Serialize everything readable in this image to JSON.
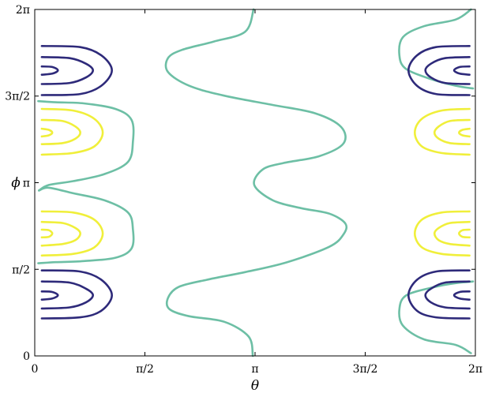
{
  "chart_data": {
    "type": "contour",
    "xlabel": "θ",
    "ylabel": "ϕ",
    "xlim": [
      0,
      6.283185
    ],
    "ylim": [
      0,
      6.283185
    ],
    "xticks": [
      {
        "value": 0,
        "label": "0"
      },
      {
        "value": 1.570796,
        "label": "π/2"
      },
      {
        "value": 3.141593,
        "label": "π"
      },
      {
        "value": 4.712389,
        "label": "3π/2"
      },
      {
        "value": 6.283185,
        "label": "2π"
      }
    ],
    "yticks": [
      {
        "value": 0,
        "label": "0"
      },
      {
        "value": 1.570796,
        "label": "π/2"
      },
      {
        "value": 3.141593,
        "label": "π"
      },
      {
        "value": 4.712389,
        "label": "3π/2"
      },
      {
        "value": 6.283185,
        "label": "2π"
      }
    ],
    "grid": false,
    "colors": {
      "level_dark": "#2e2a7a",
      "level_mid": "#6dbfa5",
      "level_bright": "#f0ef3a"
    },
    "contours": [
      {
        "level": "mid",
        "points": [
          [
            3.11,
            0
          ],
          [
            3.05,
            0.35
          ],
          [
            2.7,
            0.62
          ],
          [
            2.2,
            0.72
          ],
          [
            1.92,
            0.85
          ],
          [
            1.9,
            1.05
          ],
          [
            2.05,
            1.25
          ],
          [
            2.45,
            1.38
          ],
          [
            3.0,
            1.52
          ],
          [
            3.6,
            1.7
          ],
          [
            4.2,
            1.98
          ],
          [
            4.4,
            2.2
          ],
          [
            4.43,
            2.4
          ],
          [
            4.2,
            2.58
          ],
          [
            3.8,
            2.68
          ],
          [
            3.4,
            2.82
          ],
          [
            3.13,
            3.1
          ],
          [
            3.25,
            3.38
          ],
          [
            3.55,
            3.5
          ],
          [
            4.05,
            3.62
          ],
          [
            4.4,
            3.85
          ],
          [
            4.37,
            4.15
          ],
          [
            4.0,
            4.4
          ],
          [
            3.4,
            4.55
          ],
          [
            2.7,
            4.72
          ],
          [
            2.2,
            4.9
          ],
          [
            1.9,
            5.15
          ],
          [
            1.9,
            5.4
          ],
          [
            2.1,
            5.55
          ],
          [
            2.55,
            5.7
          ],
          [
            3.0,
            5.88
          ],
          [
            3.12,
            6.283
          ]
        ]
      },
      {
        "level": "mid",
        "points": [
          [
            0.06,
            3.0
          ],
          [
            0.2,
            3.1
          ],
          [
            0.55,
            3.17
          ],
          [
            1.0,
            3.3
          ],
          [
            1.33,
            3.52
          ],
          [
            1.4,
            3.88
          ],
          [
            1.38,
            4.28
          ],
          [
            1.15,
            4.48
          ],
          [
            0.7,
            4.58
          ],
          [
            0.3,
            4.6
          ],
          [
            0.05,
            4.62
          ]
        ]
      },
      {
        "level": "mid",
        "points": [
          [
            0.06,
            3.0
          ],
          [
            0.2,
            3.05
          ],
          [
            0.55,
            2.95
          ],
          [
            1.0,
            2.82
          ],
          [
            1.33,
            2.6
          ],
          [
            1.4,
            2.3
          ],
          [
            1.38,
            1.95
          ],
          [
            1.15,
            1.78
          ],
          [
            0.7,
            1.72
          ],
          [
            0.3,
            1.7
          ],
          [
            0.05,
            1.68
          ]
        ]
      },
      {
        "level": "mid",
        "points": [
          [
            6.22,
            6.283
          ],
          [
            6.0,
            6.1
          ],
          [
            5.55,
            5.98
          ],
          [
            5.25,
            5.78
          ],
          [
            5.2,
            5.45
          ],
          [
            5.3,
            5.2
          ],
          [
            5.7,
            5.0
          ],
          [
            6.0,
            4.9
          ],
          [
            6.25,
            4.85
          ]
        ]
      },
      {
        "level": "mid",
        "points": [
          [
            6.22,
            0.05
          ],
          [
            6.0,
            0.2
          ],
          [
            5.55,
            0.3
          ],
          [
            5.25,
            0.55
          ],
          [
            5.2,
            0.85
          ],
          [
            5.3,
            1.1
          ],
          [
            5.7,
            1.25
          ],
          [
            6.0,
            1.32
          ],
          [
            6.25,
            1.35
          ]
        ]
      },
      {
        "level": "dark",
        "points": [
          [
            0.1,
            5.62
          ],
          [
            0.65,
            5.6
          ],
          [
            0.95,
            5.45
          ],
          [
            1.1,
            5.18
          ],
          [
            0.95,
            4.9
          ],
          [
            0.65,
            4.75
          ],
          [
            0.1,
            4.73
          ]
        ]
      },
      {
        "level": "dark",
        "points": [
          [
            0.1,
            5.42
          ],
          [
            0.5,
            5.4
          ],
          [
            0.73,
            5.3
          ],
          [
            0.83,
            5.18
          ],
          [
            0.73,
            5.05
          ],
          [
            0.5,
            4.95
          ],
          [
            0.1,
            4.93
          ]
        ]
      },
      {
        "level": "dark",
        "points": [
          [
            0.1,
            5.25
          ],
          [
            0.25,
            5.24
          ],
          [
            0.33,
            5.18
          ],
          [
            0.25,
            5.12
          ],
          [
            0.1,
            5.1
          ]
        ]
      },
      {
        "level": "dark",
        "points": [
          [
            0.1,
            1.55
          ],
          [
            0.65,
            1.53
          ],
          [
            0.95,
            1.38
          ],
          [
            1.1,
            1.1
          ],
          [
            0.95,
            0.82
          ],
          [
            0.65,
            0.7
          ],
          [
            0.1,
            0.68
          ]
        ]
      },
      {
        "level": "dark",
        "points": [
          [
            0.1,
            1.35
          ],
          [
            0.5,
            1.33
          ],
          [
            0.73,
            1.22
          ],
          [
            0.83,
            1.1
          ],
          [
            0.73,
            0.97
          ],
          [
            0.5,
            0.88
          ],
          [
            0.1,
            0.86
          ]
        ]
      },
      {
        "level": "dark",
        "points": [
          [
            0.1,
            1.17
          ],
          [
            0.25,
            1.16
          ],
          [
            0.33,
            1.1
          ],
          [
            0.25,
            1.04
          ],
          [
            0.1,
            1.02
          ]
        ]
      },
      {
        "level": "dark",
        "points": [
          [
            6.2,
            5.62
          ],
          [
            5.72,
            5.6
          ],
          [
            5.45,
            5.45
          ],
          [
            5.33,
            5.18
          ],
          [
            5.45,
            4.9
          ],
          [
            5.72,
            4.75
          ],
          [
            6.2,
            4.73
          ]
        ]
      },
      {
        "level": "dark",
        "points": [
          [
            6.2,
            5.42
          ],
          [
            5.85,
            5.4
          ],
          [
            5.65,
            5.3
          ],
          [
            5.57,
            5.18
          ],
          [
            5.65,
            5.05
          ],
          [
            5.85,
            4.95
          ],
          [
            6.2,
            4.93
          ]
        ]
      },
      {
        "level": "dark",
        "points": [
          [
            6.2,
            5.25
          ],
          [
            6.06,
            5.24
          ],
          [
            5.98,
            5.18
          ],
          [
            6.06,
            5.12
          ],
          [
            6.2,
            5.1
          ]
        ]
      },
      {
        "level": "dark",
        "points": [
          [
            6.2,
            1.55
          ],
          [
            5.72,
            1.53
          ],
          [
            5.45,
            1.38
          ],
          [
            5.33,
            1.1
          ],
          [
            5.45,
            0.82
          ],
          [
            5.72,
            0.7
          ],
          [
            6.2,
            0.68
          ]
        ]
      },
      {
        "level": "dark",
        "points": [
          [
            6.2,
            1.35
          ],
          [
            5.85,
            1.33
          ],
          [
            5.65,
            1.22
          ],
          [
            5.57,
            1.1
          ],
          [
            5.65,
            0.97
          ],
          [
            5.85,
            0.88
          ],
          [
            6.2,
            0.86
          ]
        ]
      },
      {
        "level": "dark",
        "points": [
          [
            6.2,
            1.17
          ],
          [
            6.06,
            1.16
          ],
          [
            5.98,
            1.1
          ],
          [
            6.06,
            1.04
          ],
          [
            6.2,
            1.02
          ]
        ]
      },
      {
        "level": "bright",
        "points": [
          [
            0.1,
            4.48
          ],
          [
            0.55,
            4.45
          ],
          [
            0.85,
            4.3
          ],
          [
            0.97,
            4.05
          ],
          [
            0.85,
            3.8
          ],
          [
            0.55,
            3.68
          ],
          [
            0.1,
            3.65
          ]
        ]
      },
      {
        "level": "bright",
        "points": [
          [
            0.1,
            4.28
          ],
          [
            0.4,
            4.26
          ],
          [
            0.58,
            4.16
          ],
          [
            0.65,
            4.05
          ],
          [
            0.58,
            3.94
          ],
          [
            0.4,
            3.86
          ],
          [
            0.1,
            3.84
          ]
        ]
      },
      {
        "level": "bright",
        "points": [
          [
            0.1,
            4.12
          ],
          [
            0.2,
            4.1
          ],
          [
            0.25,
            4.05
          ],
          [
            0.2,
            4.0
          ],
          [
            0.1,
            3.98
          ]
        ]
      },
      {
        "level": "bright",
        "points": [
          [
            0.1,
            2.62
          ],
          [
            0.55,
            2.6
          ],
          [
            0.85,
            2.47
          ],
          [
            0.97,
            2.22
          ],
          [
            0.85,
            1.97
          ],
          [
            0.55,
            1.85
          ],
          [
            0.1,
            1.82
          ]
        ]
      },
      {
        "level": "bright",
        "points": [
          [
            0.1,
            2.43
          ],
          [
            0.4,
            2.41
          ],
          [
            0.58,
            2.32
          ],
          [
            0.65,
            2.22
          ],
          [
            0.58,
            2.1
          ],
          [
            0.4,
            2.03
          ],
          [
            0.1,
            2.0
          ]
        ]
      },
      {
        "level": "bright",
        "points": [
          [
            0.1,
            2.29
          ],
          [
            0.2,
            2.28
          ],
          [
            0.25,
            2.22
          ],
          [
            0.2,
            2.16
          ],
          [
            0.1,
            2.15
          ]
        ]
      },
      {
        "level": "bright",
        "points": [
          [
            6.2,
            4.48
          ],
          [
            5.8,
            4.45
          ],
          [
            5.52,
            4.3
          ],
          [
            5.42,
            4.05
          ],
          [
            5.52,
            3.8
          ],
          [
            5.8,
            3.68
          ],
          [
            6.2,
            3.65
          ]
        ]
      },
      {
        "level": "bright",
        "points": [
          [
            6.2,
            4.28
          ],
          [
            5.92,
            4.26
          ],
          [
            5.76,
            4.16
          ],
          [
            5.7,
            4.05
          ],
          [
            5.76,
            3.94
          ],
          [
            5.92,
            3.86
          ],
          [
            6.2,
            3.84
          ]
        ]
      },
      {
        "level": "bright",
        "points": [
          [
            6.2,
            4.12
          ],
          [
            6.1,
            4.1
          ],
          [
            6.05,
            4.05
          ],
          [
            6.1,
            4.0
          ],
          [
            6.2,
            3.98
          ]
        ]
      },
      {
        "level": "bright",
        "points": [
          [
            6.2,
            2.62
          ],
          [
            5.8,
            2.6
          ],
          [
            5.52,
            2.47
          ],
          [
            5.42,
            2.22
          ],
          [
            5.52,
            1.97
          ],
          [
            5.8,
            1.85
          ],
          [
            6.2,
            1.82
          ]
        ]
      },
      {
        "level": "bright",
        "points": [
          [
            6.2,
            2.43
          ],
          [
            5.92,
            2.41
          ],
          [
            5.76,
            2.32
          ],
          [
            5.7,
            2.22
          ],
          [
            5.76,
            2.1
          ],
          [
            5.92,
            2.03
          ],
          [
            6.2,
            2.0
          ]
        ]
      },
      {
        "level": "bright",
        "points": [
          [
            6.2,
            2.29
          ],
          [
            6.1,
            2.28
          ],
          [
            6.05,
            2.22
          ],
          [
            6.1,
            2.16
          ],
          [
            6.2,
            2.15
          ]
        ]
      }
    ]
  }
}
